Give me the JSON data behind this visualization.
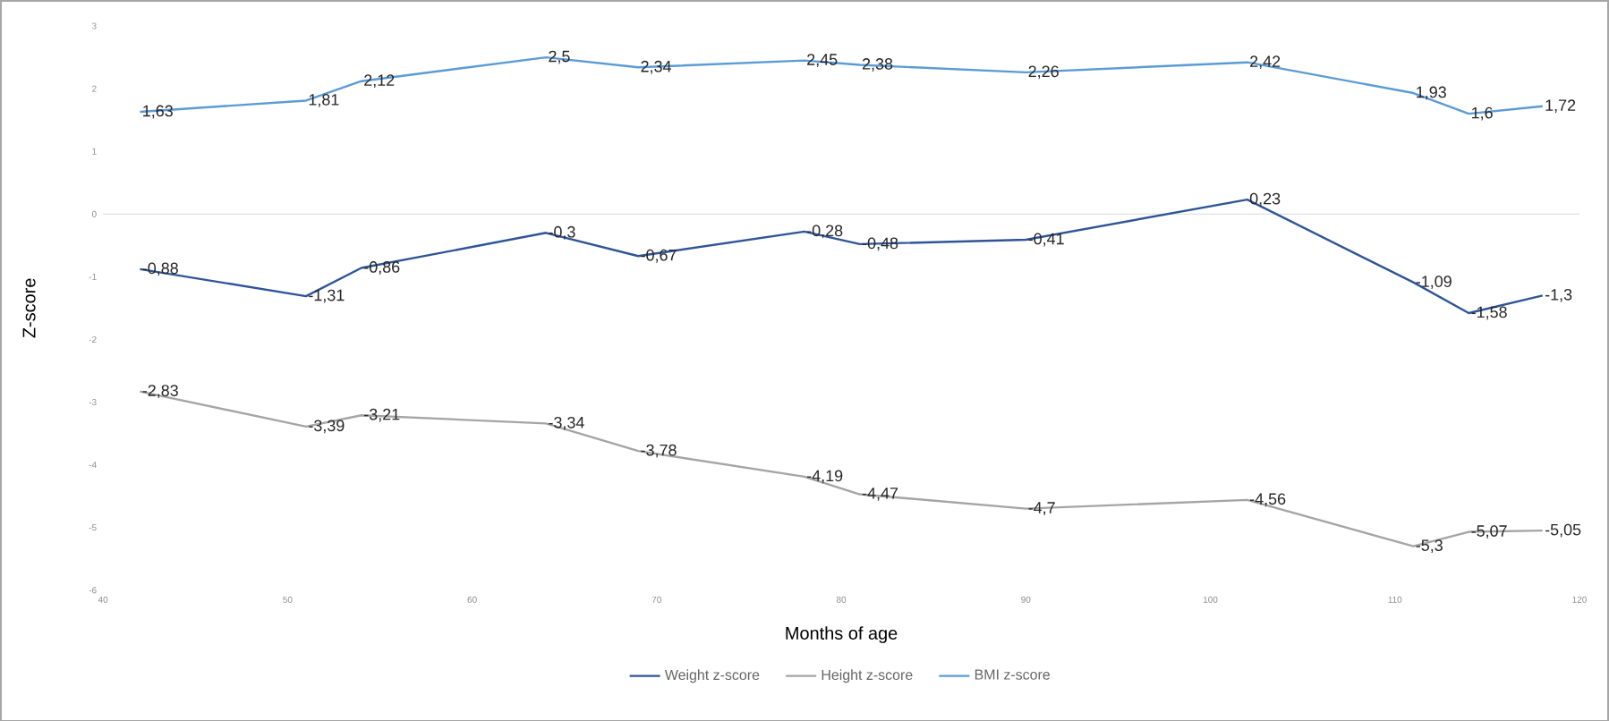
{
  "chart_data": {
    "type": "line",
    "xlabel": "Months of age",
    "ylabel": "Z-score",
    "x": [
      42,
      51,
      54,
      64,
      69,
      78,
      81,
      90,
      102,
      111,
      114,
      118
    ],
    "series": [
      {
        "name": "Weight z-score",
        "color": "#2f5597",
        "values": [
          -0.88,
          -1.31,
          -0.86,
          -0.3,
          -0.67,
          -0.28,
          -0.48,
          -0.41,
          0.23,
          -1.09,
          -1.58,
          -1.3
        ],
        "value_labels": [
          "-0,88",
          "-1,31",
          "-0,86",
          "-0,3",
          "-0,67",
          "-0,28",
          "-0,48",
          "-0,41",
          "0,23",
          "-1,09",
          "-1,58",
          "-1,3"
        ]
      },
      {
        "name": "Height z-score",
        "color": "#a5a5a5",
        "values": [
          -2.83,
          -3.39,
          -3.21,
          -3.34,
          -3.78,
          -4.19,
          -4.47,
          -4.7,
          -4.56,
          -5.3,
          -5.07,
          -5.05
        ],
        "value_labels": [
          "-2,83",
          "-3,39",
          "-3,21",
          "-3,34",
          "-3,78",
          "-4,19",
          "-4,47",
          "-4,7",
          "-4,56",
          "-5,3",
          "-5,07",
          "-5,05"
        ]
      },
      {
        "name": "BMI z-score",
        "color": "#5b9bd5",
        "values": [
          1.63,
          1.81,
          2.12,
          2.5,
          2.34,
          2.45,
          2.38,
          2.26,
          2.42,
          1.93,
          1.6,
          1.72
        ],
        "value_labels": [
          "1,63",
          "1,81",
          "2,12",
          "2,5",
          "2,34",
          "2,45",
          "2,38",
          "2,26",
          "2,42",
          "1,93",
          "1,6",
          "1,72"
        ]
      }
    ],
    "xlim": [
      40,
      120
    ],
    "xticks": [
      40,
      50,
      60,
      70,
      80,
      90,
      100,
      110,
      120
    ],
    "ylim": [
      -6,
      3
    ],
    "yticks": [
      -6,
      -5,
      -4,
      -3,
      -2,
      -1,
      0,
      1,
      2,
      3
    ],
    "ref_lines": [
      {
        "axis": "y",
        "value": 0,
        "color": "#d9d9d9"
      }
    ],
    "legend": "bottom",
    "line_style": "solid"
  }
}
